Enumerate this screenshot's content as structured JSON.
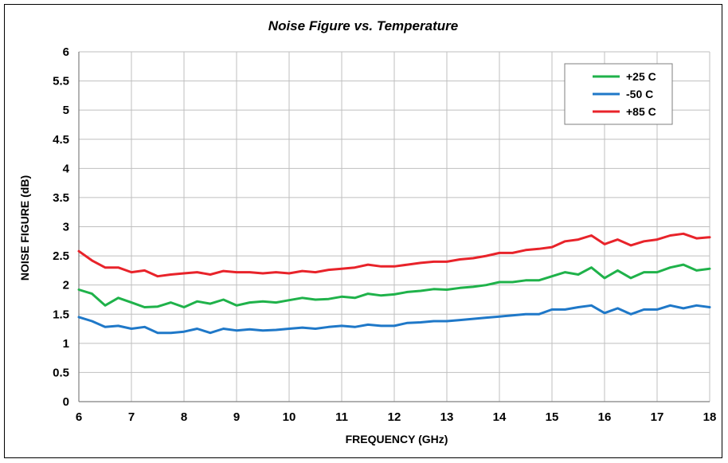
{
  "chart_data": {
    "type": "line",
    "title": "Noise Figure vs. Temperature",
    "xlabel": "FREQUENCY (GHz)",
    "ylabel": "NOISE FIGURE  (dB)",
    "xlim": [
      6,
      18
    ],
    "ylim": [
      0,
      6
    ],
    "xticks": [
      6,
      7,
      8,
      9,
      10,
      11,
      12,
      13,
      14,
      15,
      16,
      17,
      18
    ],
    "yticks": [
      "0",
      "0.5",
      "1",
      "1.5",
      "2",
      "2.5",
      "3",
      "3.5",
      "4",
      "4.5",
      "5",
      "5.5",
      "6"
    ],
    "grid": true,
    "legend_position": "top-right",
    "x": [
      6.0,
      6.25,
      6.5,
      6.75,
      7.0,
      7.25,
      7.5,
      7.75,
      8.0,
      8.25,
      8.5,
      8.75,
      9.0,
      9.25,
      9.5,
      9.75,
      10.0,
      10.25,
      10.5,
      10.75,
      11.0,
      11.25,
      11.5,
      11.75,
      12.0,
      12.25,
      12.5,
      12.75,
      13.0,
      13.25,
      13.5,
      13.75,
      14.0,
      14.25,
      14.5,
      14.75,
      15.0,
      15.25,
      15.5,
      15.75,
      16.0,
      16.25,
      16.5,
      16.75,
      17.0,
      17.25,
      17.5,
      17.75,
      18.0
    ],
    "series": [
      {
        "name": "+25 C",
        "color": "#1fb24a",
        "values": [
          1.92,
          1.85,
          1.65,
          1.78,
          1.7,
          1.62,
          1.63,
          1.7,
          1.62,
          1.72,
          1.68,
          1.75,
          1.65,
          1.7,
          1.72,
          1.7,
          1.74,
          1.78,
          1.75,
          1.76,
          1.8,
          1.78,
          1.85,
          1.82,
          1.84,
          1.88,
          1.9,
          1.93,
          1.92,
          1.95,
          1.97,
          2.0,
          2.05,
          2.05,
          2.08,
          2.08,
          2.15,
          2.22,
          2.18,
          2.3,
          2.12,
          2.25,
          2.12,
          2.22,
          2.22,
          2.3,
          2.35,
          2.25,
          2.28
        ]
      },
      {
        "name": "-50 C",
        "color": "#1f78c8",
        "values": [
          1.45,
          1.38,
          1.28,
          1.3,
          1.25,
          1.28,
          1.18,
          1.18,
          1.2,
          1.25,
          1.18,
          1.25,
          1.22,
          1.24,
          1.22,
          1.23,
          1.25,
          1.27,
          1.25,
          1.28,
          1.3,
          1.28,
          1.32,
          1.3,
          1.3,
          1.35,
          1.36,
          1.38,
          1.38,
          1.4,
          1.42,
          1.44,
          1.46,
          1.48,
          1.5,
          1.5,
          1.58,
          1.58,
          1.62,
          1.65,
          1.52,
          1.6,
          1.5,
          1.58,
          1.58,
          1.65,
          1.6,
          1.65,
          1.62
        ]
      },
      {
        "name": "+85 C",
        "color": "#e8232a",
        "values": [
          2.58,
          2.42,
          2.3,
          2.3,
          2.22,
          2.25,
          2.15,
          2.18,
          2.2,
          2.22,
          2.18,
          2.24,
          2.22,
          2.22,
          2.2,
          2.22,
          2.2,
          2.24,
          2.22,
          2.26,
          2.28,
          2.3,
          2.35,
          2.32,
          2.32,
          2.35,
          2.38,
          2.4,
          2.4,
          2.44,
          2.46,
          2.5,
          2.55,
          2.55,
          2.6,
          2.62,
          2.65,
          2.75,
          2.78,
          2.85,
          2.7,
          2.78,
          2.68,
          2.75,
          2.78,
          2.85,
          2.88,
          2.8,
          2.82
        ]
      }
    ]
  }
}
